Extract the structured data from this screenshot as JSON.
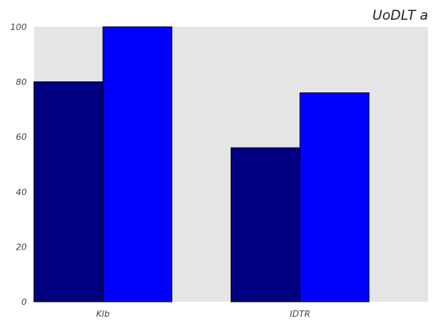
{
  "chart_data": {
    "type": "bar",
    "title": "UoDLT a",
    "xlabel": "",
    "ylabel": "",
    "categories": [
      "Klb",
      "IDTR"
    ],
    "series": [
      {
        "values": [
          80,
          56
        ],
        "color": "#000080"
      },
      {
        "values": [
          100,
          76
        ],
        "color": "#0000ff"
      }
    ],
    "ylim": [
      0,
      100
    ],
    "yticks": [
      0,
      20,
      40,
      60,
      80,
      100
    ],
    "grid": false,
    "plot_background": "#e5e5e5",
    "legend": "none"
  }
}
